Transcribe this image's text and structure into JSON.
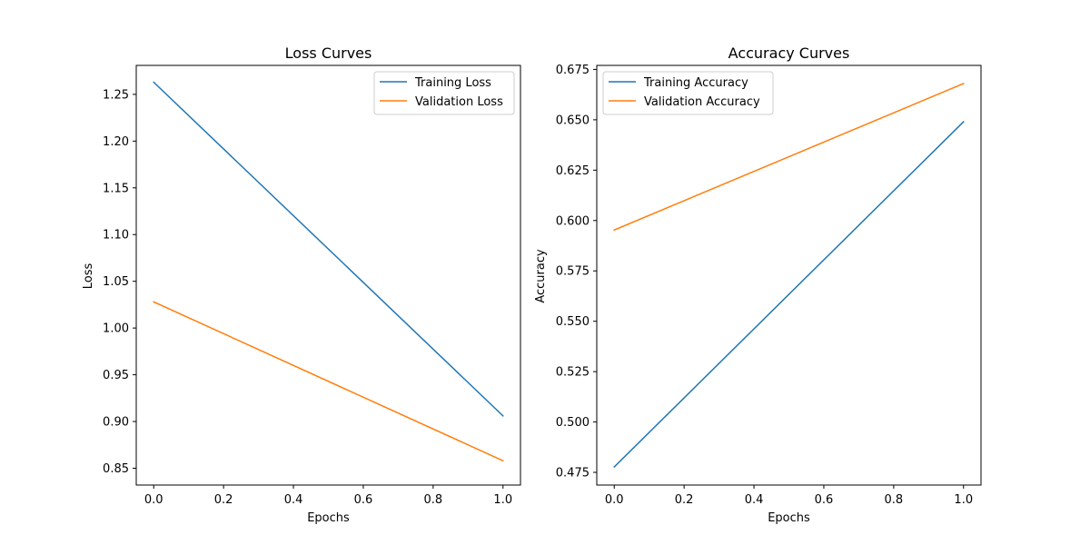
{
  "chart_data": [
    {
      "type": "line",
      "title": "Loss Curves",
      "xlabel": "Epochs",
      "ylabel": "Loss",
      "xlim": [
        -0.05,
        1.05
      ],
      "ylim": [
        0.832,
        1.281
      ],
      "x_ticks": [
        0.0,
        0.2,
        0.4,
        0.6,
        0.8,
        1.0
      ],
      "x_tick_labels": [
        "0.0",
        "0.2",
        "0.4",
        "0.6",
        "0.8",
        "1.0"
      ],
      "y_ticks": [
        0.85,
        0.9,
        0.95,
        1.0,
        1.05,
        1.1,
        1.15,
        1.2,
        1.25
      ],
      "y_tick_labels": [
        "0.85",
        "0.90",
        "0.95",
        "1.00",
        "1.05",
        "1.10",
        "1.15",
        "1.20",
        "1.25"
      ],
      "grid": false,
      "legend": "top-right",
      "series": [
        {
          "name": "Training Loss",
          "color": "#1f77b4",
          "x": [
            0,
            1
          ],
          "y": [
            1.263,
            0.906
          ]
        },
        {
          "name": "Validation Loss",
          "color": "#ff7f0e",
          "x": [
            0,
            1
          ],
          "y": [
            1.028,
            0.858
          ]
        }
      ]
    },
    {
      "type": "line",
      "title": "Accuracy Curves",
      "xlabel": "Epochs",
      "ylabel": "Accuracy",
      "xlim": [
        -0.05,
        1.05
      ],
      "ylim": [
        0.4687,
        0.677
      ],
      "x_ticks": [
        0.0,
        0.2,
        0.4,
        0.6,
        0.8,
        1.0
      ],
      "x_tick_labels": [
        "0.0",
        "0.2",
        "0.4",
        "0.6",
        "0.8",
        "1.0"
      ],
      "y_ticks": [
        0.475,
        0.5,
        0.525,
        0.55,
        0.575,
        0.6,
        0.625,
        0.65,
        0.675
      ],
      "y_tick_labels": [
        "0.475",
        "0.500",
        "0.525",
        "0.550",
        "0.575",
        "0.600",
        "0.625",
        "0.650",
        "0.675"
      ],
      "grid": false,
      "legend": "top-left",
      "series": [
        {
          "name": "Training Accuracy",
          "color": "#1f77b4",
          "x": [
            0,
            1
          ],
          "y": [
            0.4777,
            0.649
          ]
        },
        {
          "name": "Validation Accuracy",
          "color": "#ff7f0e",
          "x": [
            0,
            1
          ],
          "y": [
            0.5953,
            0.668
          ]
        }
      ]
    }
  ]
}
